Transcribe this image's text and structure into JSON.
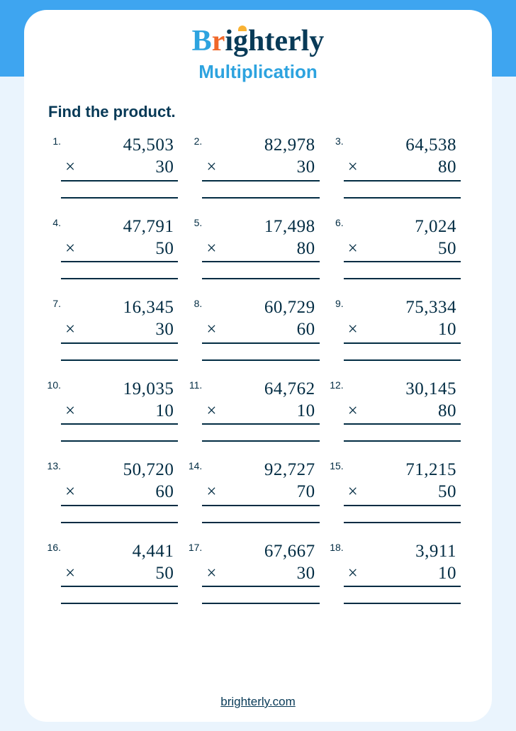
{
  "brand": {
    "name_part1": "B",
    "name_part2": "r",
    "name_part3": "ighterly",
    "logo_colors": {
      "b": "#2da3df",
      "r": "#f0682a",
      "rest": "#083a57",
      "sun": "#f9b233"
    }
  },
  "subtitle": "Multiplication",
  "instruction": "Find the product.",
  "footer_link": "brighterly.com",
  "colors": {
    "page_top": "#3ea5f0",
    "page_bottom": "#eaf4fd",
    "sheet_bg": "#ffffff",
    "text_dark": "#022c43",
    "accent": "#2da3df"
  },
  "typography": {
    "problem_fontsize": 25,
    "numlabel_fontsize": 14,
    "subtitle_fontsize": 26,
    "instruction_fontsize": 22
  },
  "problems": [
    {
      "n": "1.",
      "a": "45,503",
      "b": "30"
    },
    {
      "n": "2.",
      "a": "82,978",
      "b": "30"
    },
    {
      "n": "3.",
      "a": "64,538",
      "b": "80"
    },
    {
      "n": "4.",
      "a": "47,791",
      "b": "50"
    },
    {
      "n": "5.",
      "a": "17,498",
      "b": "80"
    },
    {
      "n": "6.",
      "a": "7,024",
      "b": "50"
    },
    {
      "n": "7.",
      "a": "16,345",
      "b": "30"
    },
    {
      "n": "8.",
      "a": "60,729",
      "b": "60"
    },
    {
      "n": "9.",
      "a": "75,334",
      "b": "10"
    },
    {
      "n": "10.",
      "a": "19,035",
      "b": "10"
    },
    {
      "n": "11.",
      "a": "64,762",
      "b": "10"
    },
    {
      "n": "12.",
      "a": "30,145",
      "b": "80"
    },
    {
      "n": "13.",
      "a": "50,720",
      "b": "60"
    },
    {
      "n": "14.",
      "a": "92,727",
      "b": "70"
    },
    {
      "n": "15.",
      "a": "71,215",
      "b": "50"
    },
    {
      "n": "16.",
      "a": "4,441",
      "b": "50"
    },
    {
      "n": "17.",
      "a": "67,667",
      "b": "30"
    },
    {
      "n": "18.",
      "a": "3,911",
      "b": "10"
    }
  ],
  "operator": "×"
}
